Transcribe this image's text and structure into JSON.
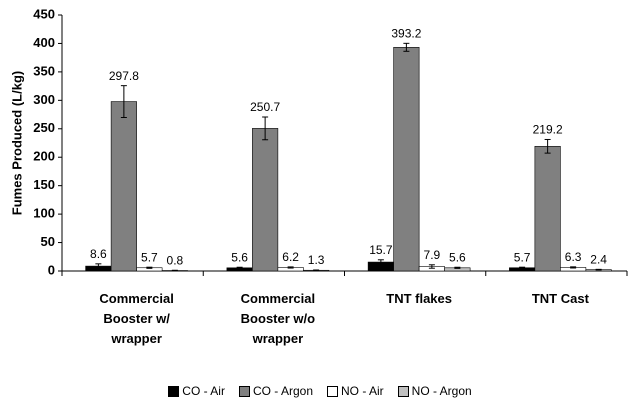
{
  "chart_data": {
    "type": "bar",
    "y_label": "Fumes Produced (L/kg)",
    "categories": [
      "Commercial Booster w/ wrapper",
      "Commercial Booster w/o wrapper",
      "TNT flakes",
      "TNT Cast"
    ],
    "series": [
      {
        "name": "CO - Air",
        "color": "#000000",
        "values": [
          8.6,
          5.6,
          15.7,
          5.7
        ],
        "errors": [
          4,
          1,
          4,
          1
        ]
      },
      {
        "name": "CO - Argon",
        "color": "#808080",
        "values": [
          297.8,
          250.7,
          393.2,
          219.2
        ],
        "errors": [
          28,
          20,
          7,
          12
        ]
      },
      {
        "name": "NO - Air",
        "color": "#ffffff",
        "values": [
          5.7,
          6.2,
          7.9,
          6.3
        ],
        "errors": [
          1,
          1,
          3,
          1
        ]
      },
      {
        "name": "NO - Argon",
        "color": "#c0c0c0",
        "values": [
          0.8,
          1.3,
          5.6,
          2.4
        ],
        "errors": [
          0.5,
          0.5,
          1,
          0.5
        ]
      }
    ],
    "ylim": [
      0,
      450
    ],
    "yticks": [
      0,
      50,
      100,
      150,
      200,
      250,
      300,
      350,
      400,
      450
    ],
    "legend": "bottom"
  }
}
